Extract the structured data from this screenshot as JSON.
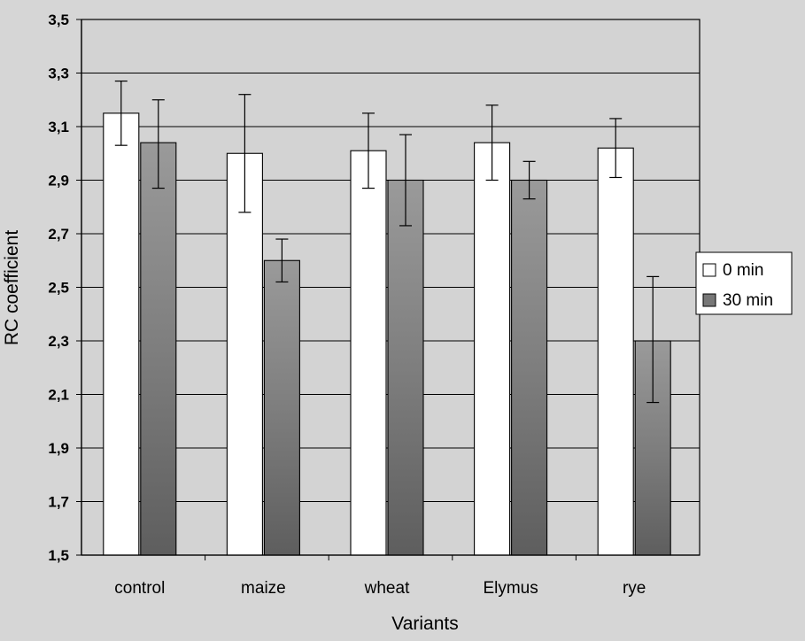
{
  "chart_data": {
    "type": "bar",
    "title": "",
    "xlabel": "Variants",
    "ylabel": "RC coefficient",
    "ylim": [
      1.5,
      3.5
    ],
    "yticks": [
      "1,5",
      "1,7",
      "1,9",
      "2,1",
      "2,3",
      "2,5",
      "2,7",
      "2,9",
      "3,1",
      "3,3",
      "3,5"
    ],
    "ytick_values": [
      1.5,
      1.7,
      1.9,
      2.1,
      2.3,
      2.5,
      2.7,
      2.9,
      3.1,
      3.3,
      3.5
    ],
    "categories": [
      "control",
      "maize",
      "wheat",
      "Elymus",
      "rye"
    ],
    "series": [
      {
        "name": "0 min",
        "color": "#ffffff",
        "values": [
          3.15,
          3.0,
          3.01,
          3.04,
          3.02
        ],
        "err_low": [
          3.03,
          2.78,
          2.87,
          2.9,
          2.91
        ],
        "err_high": [
          3.27,
          3.22,
          3.15,
          3.18,
          3.13
        ]
      },
      {
        "name": "30 min",
        "color": "#8a8a8a",
        "values": [
          3.04,
          2.6,
          2.9,
          2.9,
          2.3
        ],
        "err_low": [
          2.87,
          2.52,
          2.73,
          2.83,
          2.07
        ],
        "err_high": [
          3.2,
          2.68,
          3.07,
          2.97,
          2.54
        ]
      }
    ],
    "legend": {
      "position": "right",
      "entries": [
        "0 min",
        "30 min"
      ]
    },
    "grid": true
  }
}
